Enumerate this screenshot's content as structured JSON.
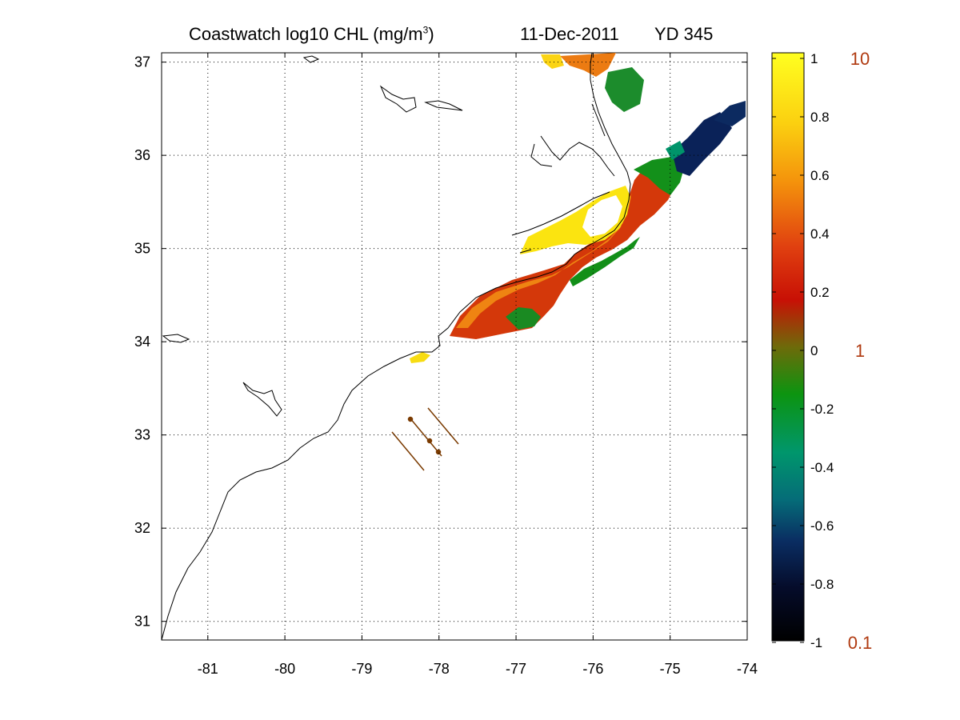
{
  "header": {
    "title_prefix": "Coastwatch  log10  CHL (mg/m",
    "title_sup": "3",
    "title_suffix": ")",
    "date": "11-Dec-2011",
    "year_day": "YD 345"
  },
  "map": {
    "x_ticks": [
      "-81",
      "-80",
      "-79",
      "-78",
      "-77",
      "-76",
      "-75",
      "-74"
    ],
    "y_ticks": [
      "37",
      "36",
      "35",
      "34",
      "33",
      "32",
      "31"
    ],
    "lon_range": [
      -81.6,
      -74.0
    ],
    "lat_range": [
      30.8,
      37.1
    ],
    "grid": true
  },
  "colorbar": {
    "ticks": [
      "1",
      "0.8",
      "0.6",
      "0.4",
      "0.2",
      "0",
      "-0.2",
      "-0.4",
      "-0.6",
      "-0.8",
      "-1"
    ],
    "range": [
      -1,
      1
    ],
    "linear_labels": [
      "10",
      "1",
      "0.1"
    ],
    "colors": {
      "low": "#000000",
      "dark_blue": "#0a1f5a",
      "teal": "#009968",
      "green": "#138a13",
      "red": "#cc1a00",
      "orange": "#f28b0c",
      "yellow": "#fffb18",
      "label_color": "#b03a10"
    }
  }
}
